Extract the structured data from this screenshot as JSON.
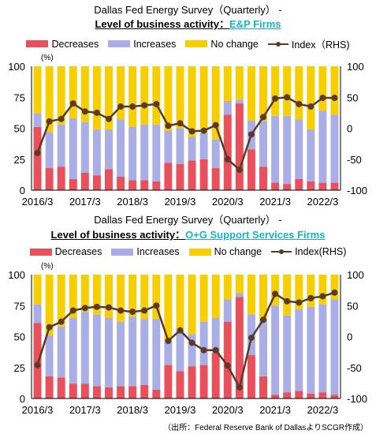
{
  "legend": {
    "decreases": "Decreases",
    "increases": "Increases",
    "no_change": "No change",
    "index_1": "Index（RHS)",
    "index_2": "Index(RHS)"
  },
  "source": "（出所：Federal Reserve Bank of DallasよりSCGR作成）",
  "colors": {
    "decreases": "#e8505b",
    "increases": "#aaaee6",
    "no_change": "#f7ce00",
    "index": "#5a3a2a"
  },
  "chart_data": [
    {
      "type": "bar",
      "title_line1": "Dallas Fed Energy Survey（Quarterly） -",
      "title_prefix": "Level of business activity：",
      "title_highlight": "E&P Firms",
      "left_unit": "(%)",
      "left_ylim": [
        0,
        100
      ],
      "right_ylim": [
        -100,
        100
      ],
      "left_ticks": [
        "0",
        "25",
        "50",
        "75",
        "100"
      ],
      "right_ticks": [
        "-100",
        "-50",
        "0",
        "50",
        "100"
      ],
      "x_ticks": [
        {
          "i": 0,
          "label": "2016/3"
        },
        {
          "i": 4,
          "label": "2017/3"
        },
        {
          "i": 8,
          "label": "2018/3"
        },
        {
          "i": 12,
          "label": "2019/3"
        },
        {
          "i": 16,
          "label": "2020/3"
        },
        {
          "i": 20,
          "label": "2021/3"
        },
        {
          "i": 24,
          "label": "2022/3"
        }
      ],
      "decreases": [
        51,
        18,
        19,
        9,
        14,
        12,
        17,
        11,
        8,
        8,
        7,
        22,
        21,
        24,
        25,
        18,
        61,
        70,
        33,
        19,
        6,
        5,
        9,
        7,
        6,
        6
      ],
      "increases": [
        11,
        29,
        34,
        49,
        41,
        37,
        32,
        46,
        43,
        45,
        46,
        26,
        29,
        19,
        21,
        23,
        11,
        3,
        23,
        37,
        54,
        55,
        48,
        42,
        58,
        55
      ],
      "no_change": [
        38,
        53,
        47,
        42,
        45,
        51,
        51,
        43,
        49,
        47,
        47,
        52,
        50,
        57,
        54,
        59,
        28,
        27,
        44,
        44,
        40,
        40,
        43,
        51,
        36,
        39
      ],
      "index": [
        -40,
        11,
        15,
        40,
        27,
        25,
        15,
        35,
        35,
        37,
        39,
        4,
        8,
        -5,
        -4,
        5,
        -50,
        -67,
        -10,
        18,
        48,
        50,
        39,
        35,
        49,
        49
      ],
      "series": [
        "Decreases",
        "Increases",
        "No change",
        "Index（RHS)"
      ]
    },
    {
      "type": "bar",
      "title_line1": "Dallas Fed Energy Survey（Quarterly） -",
      "title_prefix": "Level of business activity：",
      "title_highlight": "O+G Support Services Firms",
      "left_unit": "(%)",
      "left_ylim": [
        0,
        100
      ],
      "right_ylim": [
        -100,
        100
      ],
      "left_ticks": [
        "0",
        "25",
        "50",
        "75",
        "100"
      ],
      "right_ticks": [
        "-100",
        "-50",
        "0",
        "50",
        "100"
      ],
      "x_ticks": [
        {
          "i": 0,
          "label": "2016/3"
        },
        {
          "i": 4,
          "label": "2017/3"
        },
        {
          "i": 8,
          "label": "2018/3"
        },
        {
          "i": 12,
          "label": "2019/3"
        },
        {
          "i": 16,
          "label": "2020/3"
        },
        {
          "i": 20,
          "label": "2021/3"
        },
        {
          "i": 24,
          "label": "2022/3"
        }
      ],
      "decreases": [
        61,
        18,
        17,
        12,
        12,
        10,
        9,
        10,
        10,
        11,
        7,
        27,
        22,
        26,
        27,
        37,
        62,
        82,
        35,
        18,
        3,
        5,
        6,
        4,
        5,
        3
      ],
      "increases": [
        15,
        33,
        41,
        53,
        58,
        58,
        56,
        52,
        56,
        53,
        57,
        20,
        33,
        26,
        35,
        28,
        18,
        3,
        33,
        46,
        72,
        62,
        66,
        70,
        71,
        77
      ],
      "no_change": [
        24,
        49,
        42,
        35,
        30,
        32,
        35,
        38,
        34,
        36,
        36,
        53,
        45,
        48,
        38,
        35,
        20,
        15,
        32,
        36,
        25,
        33,
        28,
        26,
        24,
        20
      ],
      "index": [
        -46,
        15,
        24,
        42,
        46,
        48,
        47,
        42,
        40,
        42,
        50,
        -7,
        10,
        -10,
        -22,
        -22,
        -47,
        -82,
        -2,
        27,
        69,
        57,
        55,
        62,
        65,
        71
      ],
      "series": [
        "Decreases",
        "Increases",
        "No change",
        "Index(RHS)"
      ]
    }
  ]
}
